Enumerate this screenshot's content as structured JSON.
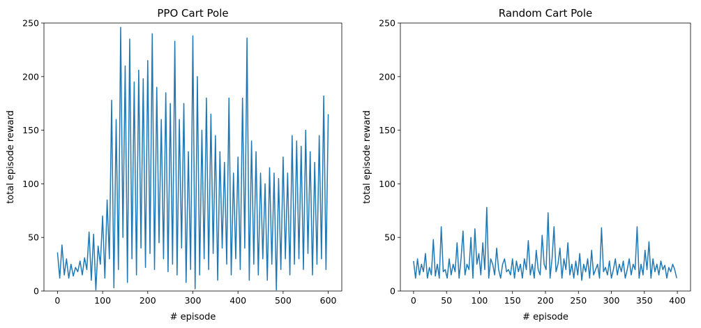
{
  "chart_data": [
    {
      "type": "line",
      "title": "PPO Cart Pole",
      "xlabel": "# episode",
      "ylabel": "total episode reward",
      "xlim": [
        -30,
        630
      ],
      "ylim": [
        0,
        250
      ],
      "xticks": [
        0,
        100,
        200,
        300,
        400,
        500,
        600
      ],
      "yticks": [
        0,
        50,
        100,
        150,
        200,
        250
      ],
      "grid": false,
      "series": [
        {
          "color": "#1f77b4",
          "x": [
            0,
            5,
            10,
            15,
            20,
            25,
            30,
            35,
            40,
            45,
            50,
            55,
            60,
            65,
            70,
            75,
            80,
            85,
            90,
            95,
            100,
            105,
            110,
            115,
            120,
            125,
            130,
            135,
            140,
            145,
            150,
            155,
            160,
            165,
            170,
            175,
            180,
            185,
            190,
            195,
            200,
            205,
            210,
            215,
            220,
            225,
            230,
            235,
            240,
            245,
            250,
            255,
            260,
            265,
            270,
            275,
            280,
            285,
            290,
            295,
            300,
            305,
            310,
            315,
            320,
            325,
            330,
            335,
            340,
            345,
            350,
            355,
            360,
            365,
            370,
            375,
            380,
            385,
            390,
            395,
            400,
            405,
            410,
            415,
            420,
            425,
            430,
            435,
            440,
            445,
            450,
            455,
            460,
            465,
            470,
            475,
            480,
            485,
            490,
            495,
            500,
            505,
            510,
            515,
            520,
            525,
            530,
            535,
            540,
            545,
            550,
            555,
            560,
            565,
            570,
            575,
            580,
            585,
            590,
            595,
            600
          ],
          "y": [
            36,
            12,
            43,
            15,
            30,
            12,
            25,
            14,
            22,
            18,
            28,
            15,
            31,
            20,
            55,
            10,
            53,
            1,
            42,
            25,
            70,
            12,
            85,
            30,
            178,
            3,
            160,
            20,
            246,
            50,
            210,
            8,
            235,
            30,
            195,
            15,
            206,
            40,
            198,
            22,
            215,
            35,
            240,
            20,
            190,
            45,
            160,
            30,
            185,
            18,
            175,
            25,
            233,
            15,
            160,
            40,
            175,
            8,
            130,
            20,
            238,
            2,
            200,
            15,
            150,
            30,
            180,
            20,
            165,
            35,
            145,
            10,
            130,
            40,
            120,
            25,
            180,
            15,
            110,
            30,
            125,
            20,
            180,
            40,
            236,
            10,
            140,
            25,
            130,
            15,
            110,
            30,
            100,
            10,
            115,
            25,
            110,
            1,
            105,
            20,
            125,
            30,
            110,
            15,
            145,
            25,
            140,
            30,
            135,
            20,
            150,
            35,
            130,
            15,
            120,
            25,
            145,
            30,
            182,
            20,
            165
          ]
        }
      ]
    },
    {
      "type": "line",
      "title": "Random Cart Pole",
      "xlabel": "# episode",
      "ylabel": "total episode reward",
      "xlim": [
        -20,
        420
      ],
      "ylim": [
        0,
        250
      ],
      "xticks": [
        0,
        50,
        100,
        150,
        200,
        250,
        300,
        350,
        400
      ],
      "yticks": [
        0,
        50,
        100,
        150,
        200,
        250
      ],
      "grid": false,
      "series": [
        {
          "color": "#1f77b4",
          "x": [
            0,
            3,
            6,
            9,
            12,
            15,
            18,
            21,
            24,
            27,
            30,
            33,
            36,
            39,
            42,
            45,
            48,
            51,
            54,
            57,
            60,
            63,
            66,
            69,
            72,
            75,
            78,
            81,
            84,
            87,
            90,
            93,
            96,
            99,
            102,
            105,
            108,
            111,
            114,
            117,
            120,
            123,
            126,
            129,
            132,
            135,
            138,
            141,
            144,
            147,
            150,
            153,
            156,
            159,
            162,
            165,
            168,
            171,
            174,
            177,
            180,
            183,
            186,
            189,
            192,
            195,
            198,
            201,
            204,
            207,
            210,
            213,
            216,
            219,
            222,
            225,
            228,
            231,
            234,
            237,
            240,
            243,
            246,
            249,
            252,
            255,
            258,
            261,
            264,
            267,
            270,
            273,
            276,
            279,
            282,
            285,
            288,
            291,
            294,
            297,
            300,
            303,
            306,
            309,
            312,
            315,
            318,
            321,
            324,
            327,
            330,
            333,
            336,
            339,
            342,
            345,
            348,
            351,
            354,
            357,
            360,
            363,
            366,
            369,
            372,
            375,
            378,
            381,
            384,
            387,
            390,
            393,
            396,
            399
          ],
          "y": [
            28,
            12,
            30,
            15,
            25,
            18,
            35,
            12,
            22,
            15,
            48,
            14,
            25,
            12,
            60,
            18,
            20,
            12,
            30,
            15,
            25,
            18,
            45,
            12,
            30,
            56,
            15,
            25,
            20,
            50,
            12,
            58,
            25,
            35,
            15,
            45,
            20,
            78,
            12,
            30,
            25,
            15,
            40,
            20,
            12,
            25,
            30,
            18,
            20,
            15,
            30,
            12,
            28,
            18,
            25,
            12,
            30,
            20,
            47,
            15,
            25,
            12,
            38,
            20,
            15,
            52,
            25,
            20,
            73,
            12,
            30,
            60,
            18,
            25,
            40,
            12,
            30,
            20,
            45,
            15,
            25,
            12,
            28,
            15,
            35,
            10,
            25,
            18,
            30,
            12,
            38,
            15,
            20,
            25,
            12,
            59,
            18,
            22,
            15,
            28,
            12,
            20,
            30,
            15,
            25,
            18,
            28,
            12,
            20,
            30,
            15,
            25,
            20,
            60,
            12,
            25,
            15,
            38,
            20,
            46,
            12,
            30,
            18,
            25,
            15,
            28,
            20,
            24,
            12,
            22,
            18,
            25,
            20,
            12
          ]
        }
      ]
    }
  ]
}
